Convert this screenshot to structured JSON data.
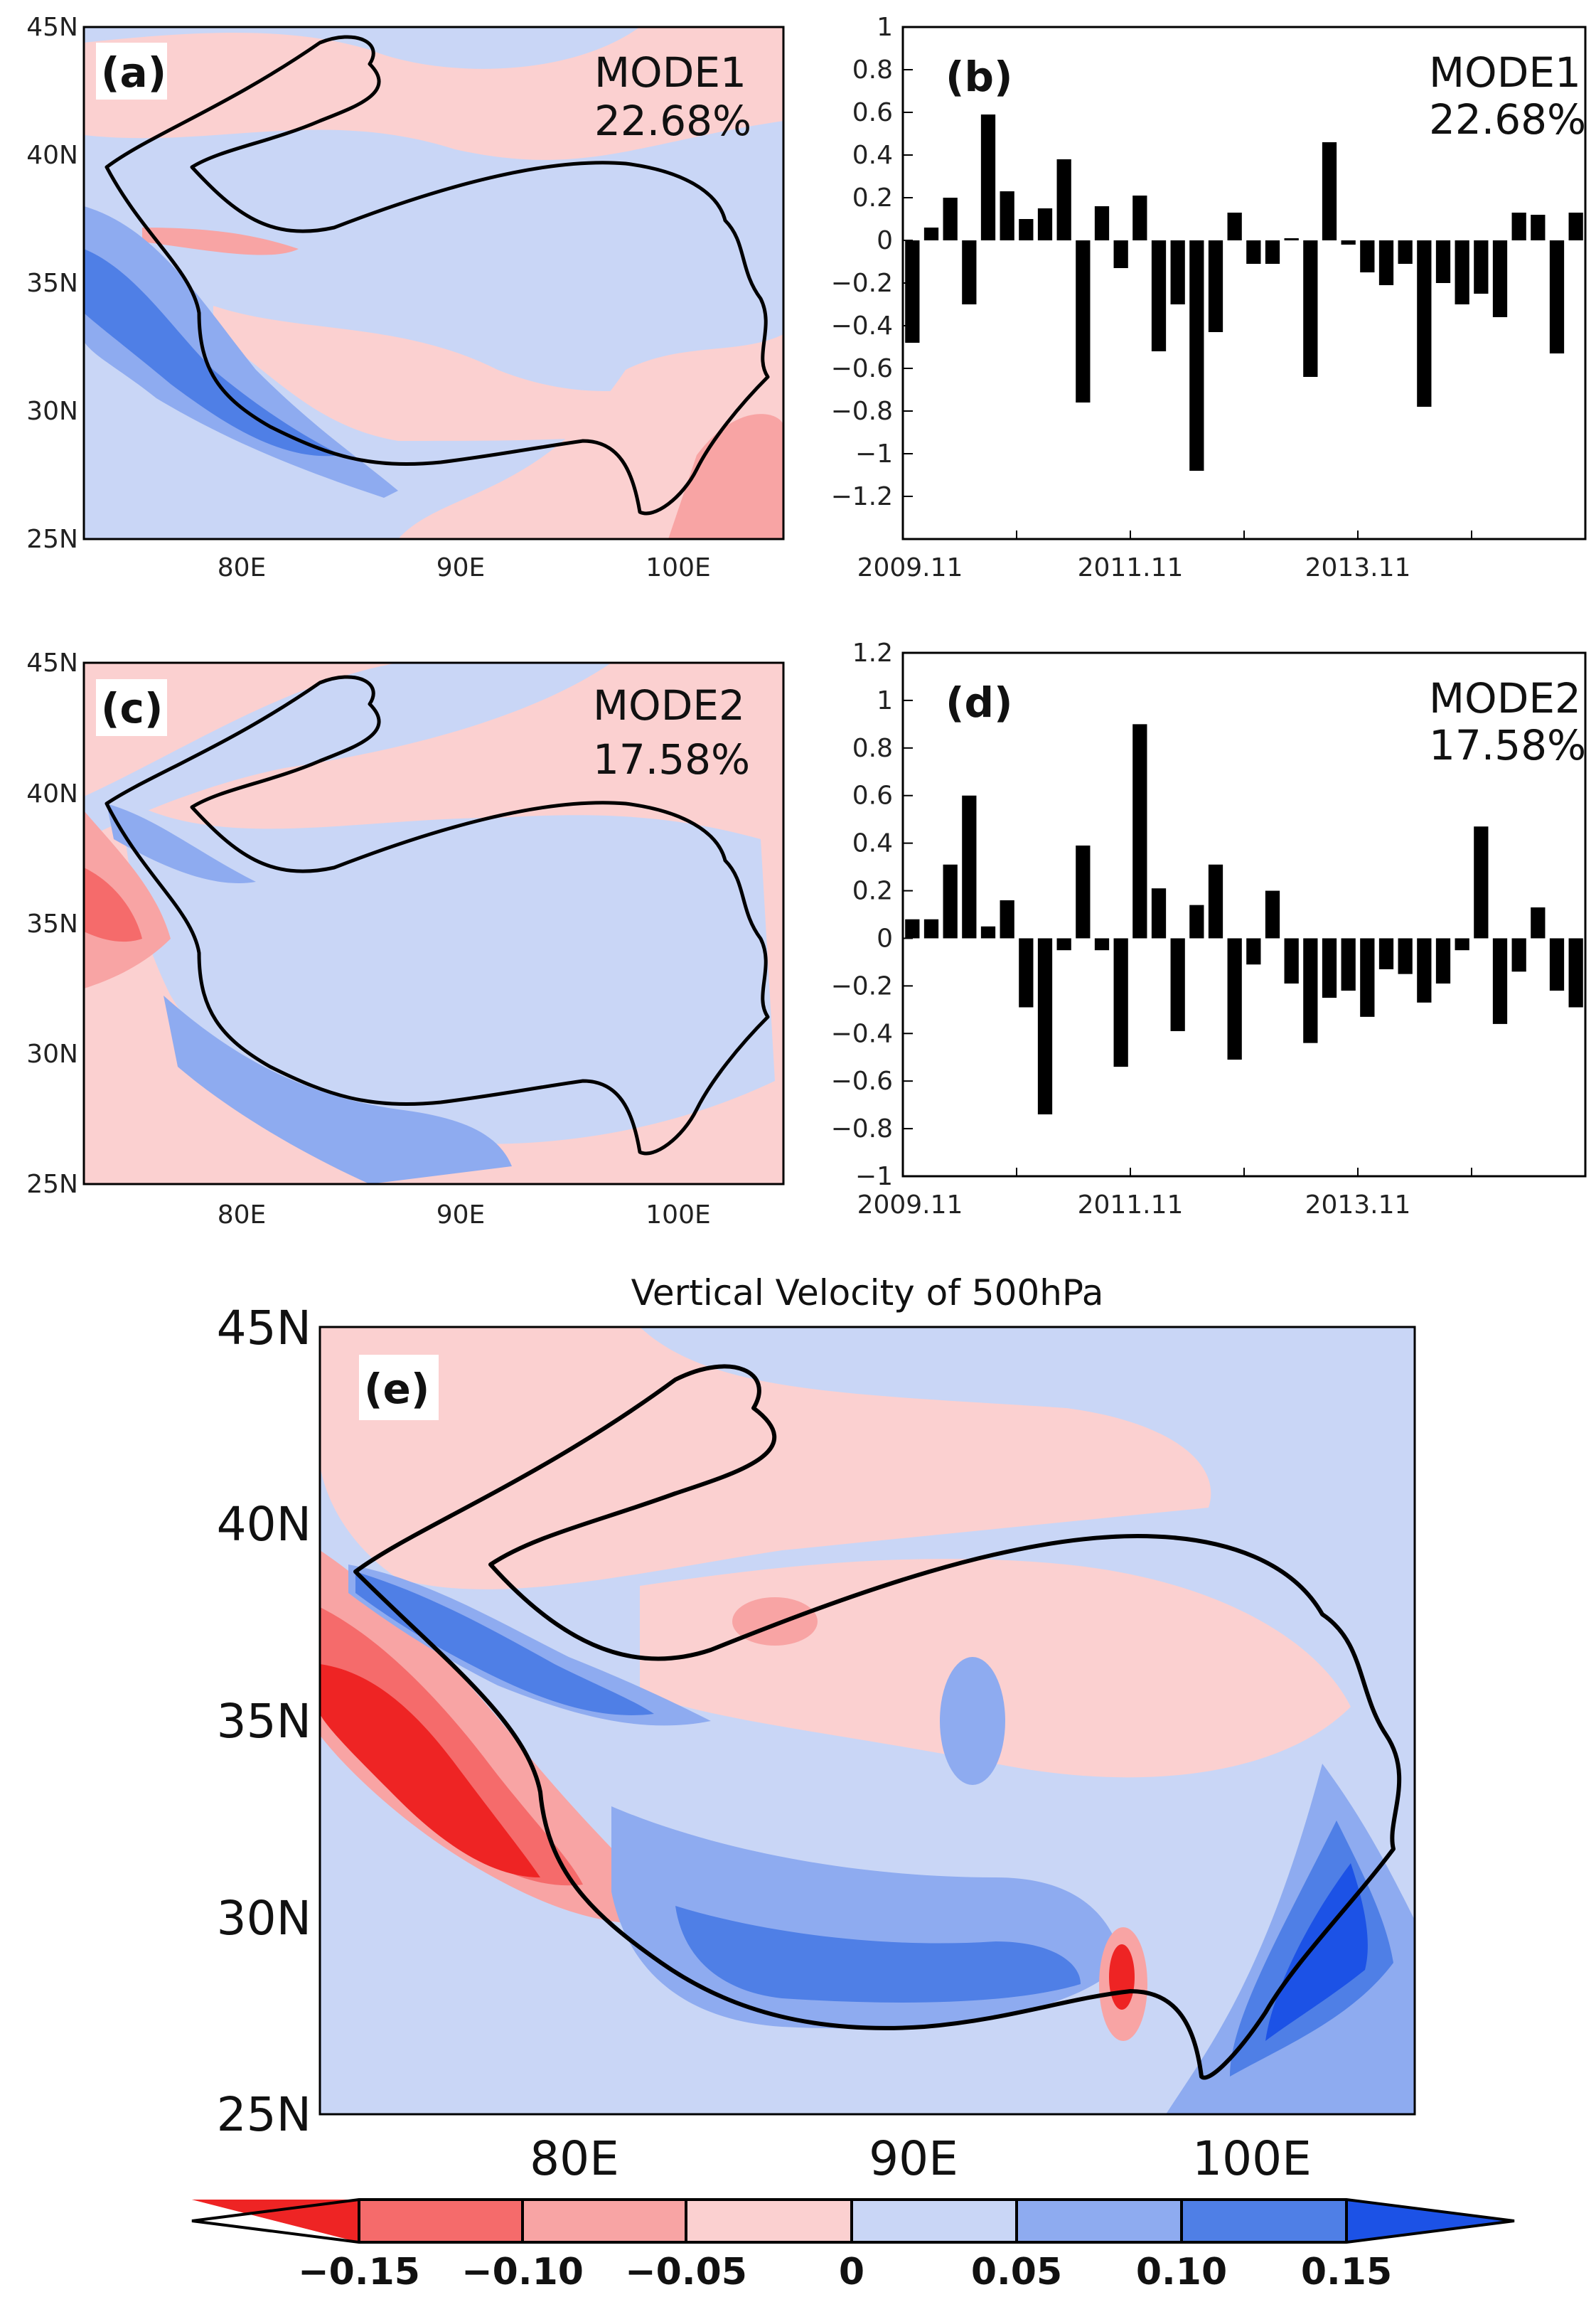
{
  "colors": {
    "neg3": "#ee2424",
    "neg2": "#f56b6b",
    "neg1": "#f8a4a4",
    "neg0": "#fbd0d0",
    "pos0": "#c9d6f6",
    "pos1": "#8eabf0",
    "pos2": "#4f7fe6",
    "pos3": "#1c52e6",
    "bar": "#000000",
    "boundary": "#000000"
  },
  "maps": {
    "a": {
      "panel_label": "(a)",
      "mode": "MODE1",
      "variance": "22.68%",
      "lat_ticks": [
        "45N",
        "40N",
        "35N",
        "30N",
        "25N"
      ],
      "lon_ticks": [
        "80E",
        "90E",
        "100E"
      ]
    },
    "c": {
      "panel_label": "(c)",
      "mode": "MODE2",
      "variance": "17.58%",
      "lat_ticks": [
        "45N",
        "40N",
        "35N",
        "30N",
        "25N"
      ],
      "lon_ticks": [
        "80E",
        "90E",
        "100E"
      ]
    },
    "e": {
      "panel_label": "(e)",
      "title": "Vertical Velocity of 500hPa",
      "lat_ticks": [
        "45N",
        "40N",
        "35N",
        "30N",
        "25N"
      ],
      "lon_ticks": [
        "80E",
        "90E",
        "100E"
      ]
    }
  },
  "colorbar": {
    "labels": [
      "−0.15",
      "−0.10",
      "−0.05",
      "0",
      "0.05",
      "0.10",
      "0.15"
    ]
  },
  "chart_data": [
    {
      "id": "b",
      "type": "bar",
      "panel_label": "(b)",
      "title": "MODE1",
      "subtitle": "22.68%",
      "x_ticks": [
        "2009.11",
        "2011.11",
        "2013.11"
      ],
      "y_ticks": [
        "1",
        "0.8",
        "0.6",
        "0.4",
        "0.2",
        "0",
        "−0.2",
        "−0.4",
        "−0.6",
        "−0.8",
        "−1",
        "−1.2"
      ],
      "ylim": [
        -1.4,
        1.0
      ],
      "values": [
        -0.48,
        0.06,
        0.2,
        -0.3,
        0.59,
        0.23,
        0.1,
        0.15,
        0.38,
        -0.76,
        0.16,
        -0.13,
        0.21,
        -0.52,
        -0.3,
        -1.08,
        -0.43,
        0.13,
        -0.11,
        -0.11,
        0.01,
        -0.64,
        0.46,
        -0.02,
        -0.15,
        -0.21,
        -0.11,
        -0.78,
        -0.2,
        -0.3,
        -0.25,
        -0.36,
        0.13,
        0.12,
        -0.53,
        0.13
      ]
    },
    {
      "id": "d",
      "type": "bar",
      "panel_label": "(d)",
      "title": "MODE2",
      "subtitle": "17.58%",
      "x_ticks": [
        "2009.11",
        "2011.11",
        "2013.11"
      ],
      "y_ticks": [
        "1.2",
        "1",
        "0.8",
        "0.6",
        "0.4",
        "0.2",
        "0",
        "−0.2",
        "−0.4",
        "−0.6",
        "−0.8",
        "−1"
      ],
      "ylim": [
        -1.0,
        1.2
      ],
      "values": [
        0.08,
        0.08,
        0.31,
        0.6,
        0.05,
        0.16,
        -0.29,
        -0.74,
        -0.05,
        0.39,
        -0.05,
        -0.54,
        0.9,
        0.21,
        -0.39,
        0.14,
        0.31,
        -0.51,
        -0.11,
        0.2,
        -0.19,
        -0.44,
        -0.25,
        -0.22,
        -0.33,
        -0.13,
        -0.15,
        -0.27,
        -0.19,
        -0.05,
        0.47,
        -0.36,
        -0.14,
        0.13,
        -0.22,
        -0.29
      ]
    }
  ]
}
